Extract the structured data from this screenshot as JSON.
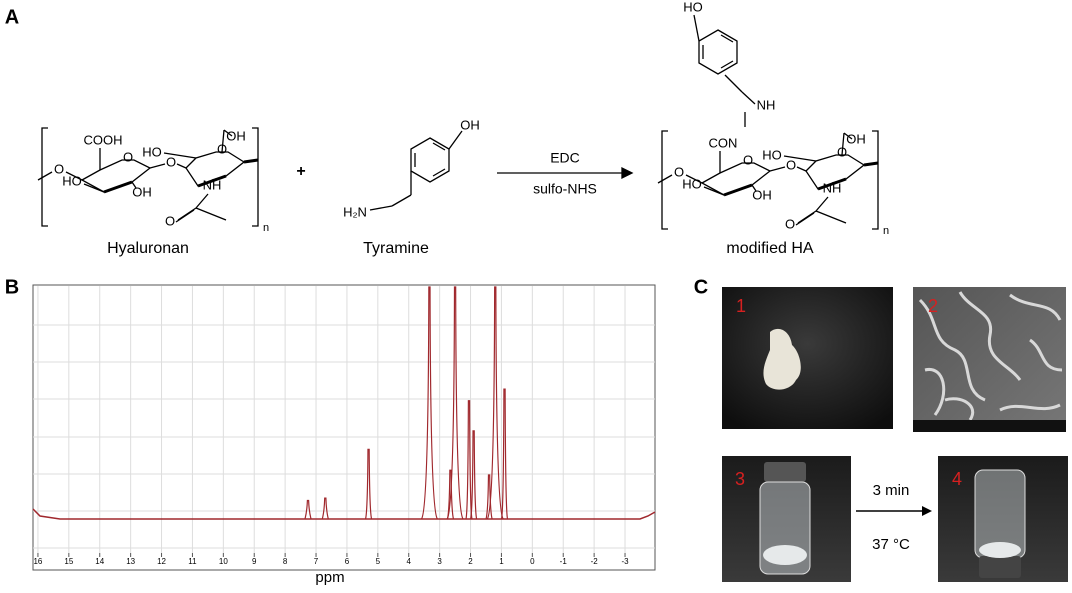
{
  "panels": {
    "a": "A",
    "b": "B",
    "c": "C"
  },
  "reaction": {
    "hyaluronan": {
      "name": "Hyaluronan",
      "labels": [
        "COOH",
        "OH",
        "HO",
        "O",
        "HO",
        "OH",
        "O",
        "O",
        "O",
        "NH",
        "O",
        "n"
      ]
    },
    "plus": "+",
    "tyramine": {
      "name": "Tyramine",
      "labels": [
        "OH",
        "H₂N"
      ]
    },
    "reagents": [
      "EDC",
      "sulfo-NHS"
    ],
    "modified_ha": {
      "name": "modified HA",
      "labels": [
        "CON",
        "OH",
        "HO",
        "O",
        "HO",
        "OH",
        "O",
        "O",
        "O",
        "NH",
        "O",
        "n",
        "NH",
        "HO"
      ]
    }
  },
  "chart_data": {
    "type": "peaks",
    "xlabel": "ppm",
    "xlim": [
      16.16,
      -3.97
    ],
    "xticks": [
      16,
      15,
      14,
      13,
      12,
      11,
      10,
      9,
      8,
      7,
      6,
      5,
      4,
      3,
      2,
      1,
      0,
      -1,
      -2,
      -3
    ],
    "x": [
      7.26,
      6.7,
      5.3,
      3.33,
      2.65,
      2.5,
      2.05,
      1.9,
      1.4,
      1.2,
      0.9
    ],
    "values": [
      8,
      9,
      30,
      100,
      21,
      100,
      51,
      38,
      19,
      100,
      56
    ],
    "color": "#a0282d",
    "grid": true
  },
  "photos": {
    "labels": [
      "1",
      "2",
      "3",
      "4"
    ],
    "arrow": [
      "3 min",
      "37 °C"
    ]
  }
}
